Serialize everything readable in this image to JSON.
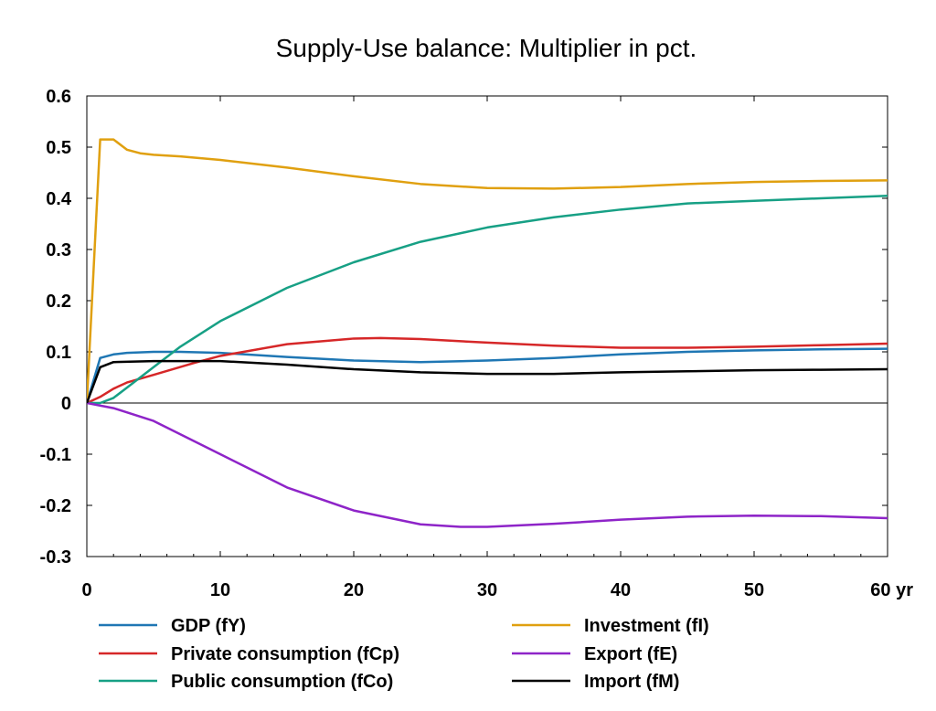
{
  "chart_data": {
    "type": "line",
    "title": "Supply-Use balance: Multiplier in pct.",
    "xlabel": "",
    "ylabel": "",
    "xlim": [
      0,
      60
    ],
    "ylim": [
      -0.3,
      0.6
    ],
    "x_ticks": [
      0,
      10,
      20,
      30,
      40,
      50,
      60
    ],
    "x_tick_labels": [
      "0",
      "10",
      "20",
      "30",
      "40",
      "50",
      "60 yr"
    ],
    "y_ticks": [
      -0.3,
      -0.2,
      -0.1,
      0,
      0.1,
      0.2,
      0.3,
      0.4,
      0.5,
      0.6
    ],
    "y_tick_labels": [
      "-0.3",
      "-0.2",
      "-0.1",
      "0",
      "0.1",
      "0.2",
      "0.3",
      "0.4",
      "0.5",
      "0.6"
    ],
    "grid": false,
    "zero_line": true,
    "legend_position": "bottom",
    "series": [
      {
        "name": "GDP (fY)",
        "color": "#1f77b4",
        "points": [
          [
            0,
            0
          ],
          [
            1,
            0.088
          ],
          [
            2,
            0.095
          ],
          [
            3,
            0.098
          ],
          [
            5,
            0.1
          ],
          [
            7,
            0.1
          ],
          [
            10,
            0.098
          ],
          [
            15,
            0.09
          ],
          [
            20,
            0.083
          ],
          [
            25,
            0.08
          ],
          [
            30,
            0.083
          ],
          [
            35,
            0.088
          ],
          [
            40,
            0.095
          ],
          [
            45,
            0.1
          ],
          [
            50,
            0.103
          ],
          [
            55,
            0.105
          ],
          [
            60,
            0.106
          ]
        ]
      },
      {
        "name": "Private consumption (fCp)",
        "color": "#d62728",
        "points": [
          [
            0,
            0
          ],
          [
            1,
            0.012
          ],
          [
            2,
            0.028
          ],
          [
            3,
            0.04
          ],
          [
            5,
            0.055
          ],
          [
            8,
            0.078
          ],
          [
            10,
            0.092
          ],
          [
            15,
            0.115
          ],
          [
            20,
            0.126
          ],
          [
            22,
            0.127
          ],
          [
            25,
            0.125
          ],
          [
            30,
            0.118
          ],
          [
            35,
            0.112
          ],
          [
            40,
            0.108
          ],
          [
            45,
            0.108
          ],
          [
            50,
            0.11
          ],
          [
            55,
            0.113
          ],
          [
            60,
            0.116
          ]
        ]
      },
      {
        "name": "Public consumption (fCo)",
        "color": "#17a085",
        "points": [
          [
            0,
            0
          ],
          [
            1,
            0
          ],
          [
            2,
            0.01
          ],
          [
            3,
            0.03
          ],
          [
            5,
            0.07
          ],
          [
            7,
            0.11
          ],
          [
            10,
            0.16
          ],
          [
            15,
            0.225
          ],
          [
            20,
            0.275
          ],
          [
            25,
            0.315
          ],
          [
            30,
            0.343
          ],
          [
            35,
            0.363
          ],
          [
            40,
            0.378
          ],
          [
            45,
            0.39
          ],
          [
            50,
            0.395
          ],
          [
            55,
            0.4
          ],
          [
            60,
            0.405
          ]
        ]
      },
      {
        "name": "Investment (fI)",
        "color": "#e0a010",
        "points": [
          [
            0,
            0
          ],
          [
            1,
            0.515
          ],
          [
            2,
            0.515
          ],
          [
            3,
            0.495
          ],
          [
            4,
            0.488
          ],
          [
            5,
            0.485
          ],
          [
            7,
            0.482
          ],
          [
            10,
            0.475
          ],
          [
            15,
            0.46
          ],
          [
            20,
            0.443
          ],
          [
            25,
            0.428
          ],
          [
            30,
            0.42
          ],
          [
            35,
            0.419
          ],
          [
            40,
            0.422
          ],
          [
            45,
            0.428
          ],
          [
            50,
            0.432
          ],
          [
            55,
            0.434
          ],
          [
            60,
            0.435
          ]
        ]
      },
      {
        "name": "Export (fE)",
        "color": "#8e24c8",
        "points": [
          [
            0,
            0
          ],
          [
            2,
            -0.01
          ],
          [
            5,
            -0.035
          ],
          [
            10,
            -0.1
          ],
          [
            15,
            -0.165
          ],
          [
            20,
            -0.21
          ],
          [
            25,
            -0.237
          ],
          [
            28,
            -0.242
          ],
          [
            30,
            -0.242
          ],
          [
            35,
            -0.236
          ],
          [
            40,
            -0.228
          ],
          [
            45,
            -0.222
          ],
          [
            50,
            -0.22
          ],
          [
            55,
            -0.221
          ],
          [
            60,
            -0.225
          ]
        ]
      },
      {
        "name": "Import (fM)",
        "color": "#000000",
        "points": [
          [
            0,
            0
          ],
          [
            1,
            0.07
          ],
          [
            2,
            0.08
          ],
          [
            5,
            0.082
          ],
          [
            10,
            0.082
          ],
          [
            15,
            0.075
          ],
          [
            20,
            0.066
          ],
          [
            25,
            0.06
          ],
          [
            30,
            0.057
          ],
          [
            35,
            0.057
          ],
          [
            40,
            0.06
          ],
          [
            45,
            0.062
          ],
          [
            50,
            0.064
          ],
          [
            55,
            0.065
          ],
          [
            60,
            0.066
          ]
        ]
      }
    ]
  }
}
